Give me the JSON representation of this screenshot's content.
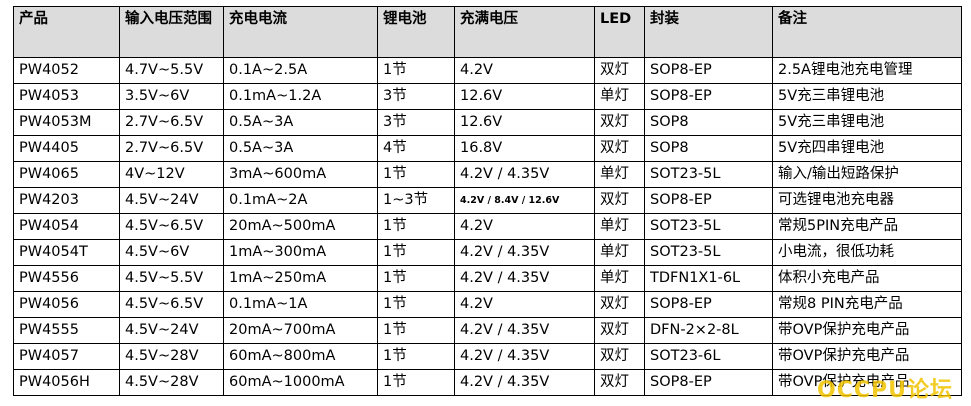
{
  "table": {
    "headers": [
      "产品",
      "输入电压范围",
      "充电电流",
      "锂电池",
      "充满电压",
      "LED",
      "封装",
      "备注"
    ],
    "rows": [
      [
        "PW4052",
        "4.7V~5.5V",
        "0.1A~2.5A",
        "1节",
        "4.2V",
        "双灯",
        "SOP8-EP",
        "2.5A锂电池充电管理"
      ],
      [
        "PW4053",
        "3.5V~6V",
        "0.1mA~1.2A",
        "3节",
        "12.6V",
        "单灯",
        "SOP8-EP",
        "5V充三串锂电池"
      ],
      [
        "PW4053M",
        "2.7V~6.5V",
        "0.5A~3A",
        "3节",
        "12.6V",
        "双灯",
        "SOP8",
        "5V充三串锂电池"
      ],
      [
        "PW4405",
        "2.7V~6.5V",
        "0.5A~3A",
        "4节",
        "16.8V",
        "双灯",
        "SOP8",
        "5V充四串锂电池"
      ],
      [
        "PW4065",
        "4V~12V",
        "3mA~600mA",
        "1节",
        "4.2V / 4.35V",
        "单灯",
        "SOT23-5L",
        "输入/输出短路保护"
      ],
      [
        "PW4203",
        "4.5V~24V",
        "0.1mA~2A",
        "1~3节",
        "4.2V / 8.4V / 12.6V",
        "双灯",
        "SOP8-EP",
        "可选锂电池充电器"
      ],
      [
        "PW4054",
        "4.5V~6.5V",
        "20mA~500mA",
        "1节",
        "4.2V",
        "单灯",
        "SOT23-5L",
        "常规5PIN充电产品"
      ],
      [
        "PW4054T",
        "4.5V~6V",
        "1mA~300mA",
        "1节",
        "4.2V / 4.35V",
        "单灯",
        "SOT23-5L",
        "小电流，很低功耗"
      ],
      [
        "PW4556",
        "4.5V~5.5V",
        "1mA~250mA",
        "1节",
        "4.2V / 4.35V",
        "单灯",
        "TDFN1X1-6L",
        "体积小充电产品"
      ],
      [
        "PW4056",
        "4.5V~6.5V",
        "0.1mA~1A",
        "1节",
        "4.2V",
        "双灯",
        "SOP8-EP",
        "常规8 PIN充电产品"
      ],
      [
        "PW4555",
        "4.5V~24V",
        "20mA~700mA",
        "1节",
        "4.2V / 4.35V",
        "双灯",
        "DFN-2×2-8L",
        "带OVP保护充电产品"
      ],
      [
        "PW4057",
        "4.5V~28V",
        "60mA~800mA",
        "1节",
        "4.2V / 4.35V",
        "双灯",
        "SOT23-6L",
        "带OVP保护充电产品"
      ],
      [
        "PW4056H",
        "4.5V~28V",
        "60mA~1000mA",
        "1节",
        "4.2V / 4.35V",
        "双灯",
        "SOP8-EP",
        "带OVP保护充电产品"
      ]
    ]
  },
  "watermark": "OCCPU论坛",
  "colors": {
    "header_bg": "#dcdcdc",
    "watermark": "#f2c400"
  }
}
